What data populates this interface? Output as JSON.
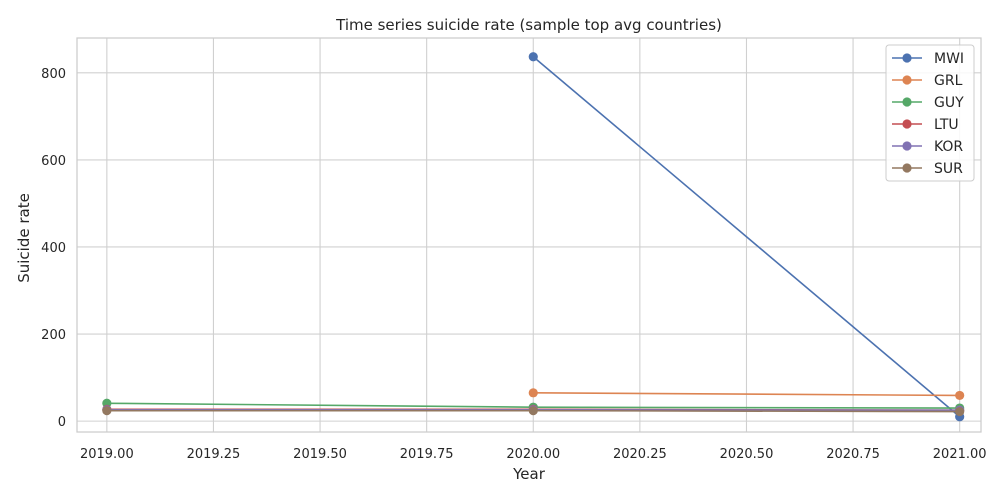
{
  "chart_data": {
    "type": "line",
    "title": "Time series suicide rate (sample top avg countries)",
    "xlabel": "Year",
    "ylabel": "Suicide rate",
    "xlim": [
      2018.93,
      2021.05
    ],
    "ylim": [
      -25,
      880
    ],
    "x_ticks": [
      2019.0,
      2019.25,
      2019.5,
      2019.75,
      2020.0,
      2020.25,
      2020.5,
      2020.75,
      2021.0
    ],
    "x_tick_labels": [
      "2019.00",
      "2019.25",
      "2019.50",
      "2019.75",
      "2020.00",
      "2020.25",
      "2020.50",
      "2020.75",
      "2021.00"
    ],
    "y_ticks": [
      0,
      200,
      400,
      600,
      800
    ],
    "y_tick_labels": [
      "0",
      "200",
      "400",
      "600",
      "800"
    ],
    "grid": true,
    "legend_position": "top-right",
    "series": [
      {
        "name": "MWI",
        "color": "#4c72b0",
        "x": [
          2020,
          2021
        ],
        "y": [
          837,
          10
        ]
      },
      {
        "name": "GRL",
        "color": "#dd8452",
        "x": [
          2020,
          2021
        ],
        "y": [
          65,
          59
        ]
      },
      {
        "name": "GUY",
        "color": "#55a868",
        "x": [
          2019,
          2020,
          2021
        ],
        "y": [
          41,
          32,
          30
        ]
      },
      {
        "name": "LTU",
        "color": "#c44e52",
        "x": [
          2019,
          2020,
          2021
        ],
        "y": [
          27,
          27,
          25
        ]
      },
      {
        "name": "KOR",
        "color": "#8172b3",
        "x": [
          2019,
          2020,
          2021
        ],
        "y": [
          26,
          26,
          25
        ]
      },
      {
        "name": "SUR",
        "color": "#937860",
        "x": [
          2019,
          2020,
          2021
        ],
        "y": [
          24,
          24,
          22
        ]
      }
    ]
  }
}
